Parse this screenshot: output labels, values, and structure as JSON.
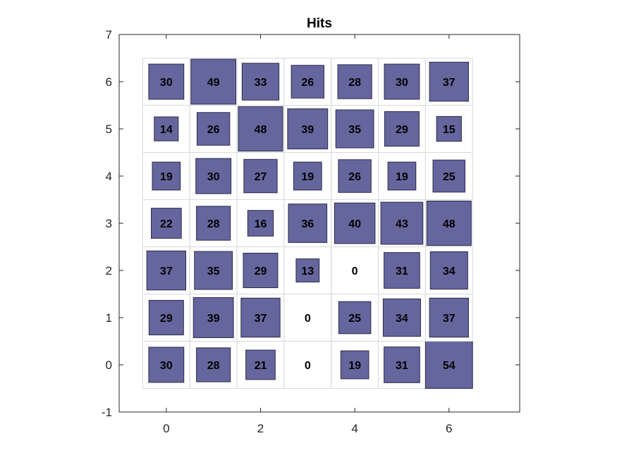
{
  "chart_data": {
    "type": "heatmap",
    "title": "Hits",
    "xlabel": "",
    "ylabel": "",
    "xlim": [
      -1,
      7.5
    ],
    "ylim": [
      -1,
      7
    ],
    "x_ticks": [
      "0",
      "2",
      "4",
      "6"
    ],
    "y_ticks": [
      "-1",
      "0",
      "1",
      "2",
      "3",
      "4",
      "5",
      "6",
      "7"
    ],
    "x": [
      0,
      1,
      2,
      3,
      4,
      5,
      6
    ],
    "y": [
      0,
      1,
      2,
      3,
      4,
      5,
      6
    ],
    "max_value": 54,
    "grid": true,
    "square_color": "#66669E",
    "square_edge_color": "#2a2a4a",
    "grid_color": "#d9d9d9",
    "values": [
      [
        30,
        28,
        21,
        0,
        19,
        31,
        54
      ],
      [
        29,
        39,
        37,
        0,
        25,
        34,
        37
      ],
      [
        37,
        35,
        29,
        13,
        0,
        31,
        34
      ],
      [
        22,
        28,
        16,
        36,
        40,
        43,
        48
      ],
      [
        19,
        30,
        27,
        19,
        26,
        19,
        25
      ],
      [
        14,
        26,
        48,
        39,
        35,
        29,
        15
      ],
      [
        30,
        49,
        33,
        26,
        28,
        30,
        37
      ]
    ]
  }
}
